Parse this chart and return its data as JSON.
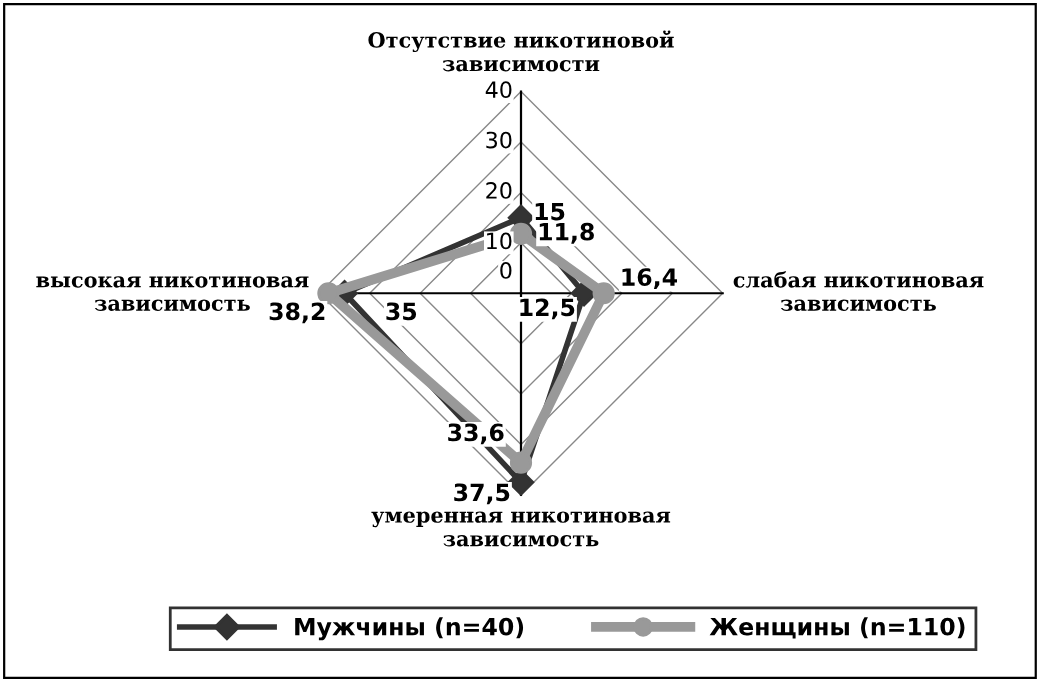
{
  "chart_data": {
    "type": "radar",
    "categories": [
      "Отсутствие никотиновой зависимости",
      "слабая никотиновая зависимость",
      "умеренная никотиновая зависимость",
      "высокая никотиновая зависимость"
    ],
    "series": [
      {
        "name": "Мужчины (n=40)",
        "color": "#333333",
        "marker": "diamond",
        "values": [
          15,
          12.5,
          37.5,
          35
        ],
        "value_labels": [
          "15",
          "12,5",
          "37,5",
          "35"
        ]
      },
      {
        "name": "Женщины (n=110)",
        "color": "#999999",
        "marker": "circle",
        "values": [
          11.8,
          16.4,
          33.6,
          38.2
        ],
        "value_labels": [
          "11,8",
          "16,4",
          "33,6",
          "38,2"
        ]
      }
    ],
    "ylim": [
      0,
      40
    ],
    "yticks": [
      0,
      10,
      20,
      30,
      40
    ],
    "grid": true,
    "legend": "bottom",
    "line_style": "solid"
  }
}
